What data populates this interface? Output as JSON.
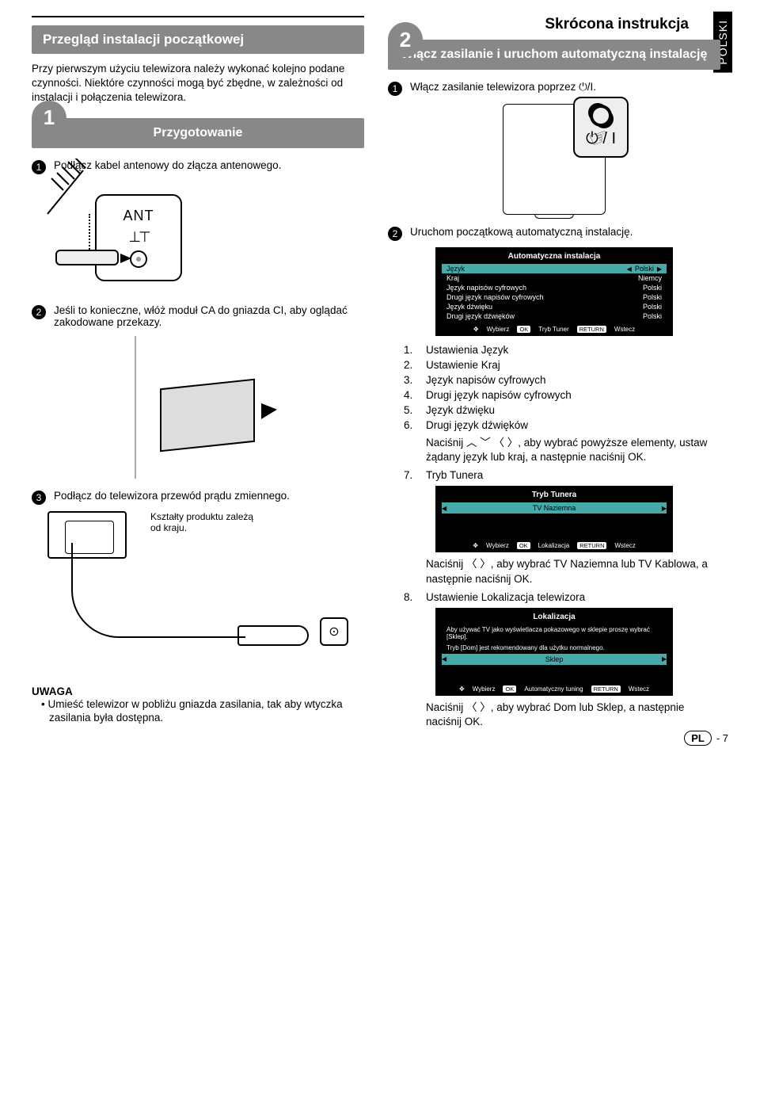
{
  "doc": {
    "title_right": "Skrócona instrukcja",
    "lang_tab": "POLSKI",
    "page_code": "PL",
    "page_num": "- 7"
  },
  "left": {
    "header": "Przegląd instalacji początkowej",
    "intro": "Przy pierwszym użyciu telewizora należy wykonać kolejno podane czynności. Niektóre czynności mogą być zbędne, w zależności od instalacji i połączenia telewizora.",
    "step1_num": "1",
    "step1_title": "Przygotowanie",
    "s1_1": "Podłącz kabel antenowy do złącza antenowego.",
    "ant_label": "ANT",
    "s1_2": "Jeśli to konieczne, włóż moduł CA do gniazda CI, aby oglądać zakodowane przekazy.",
    "s1_3": "Podłącz do telewizora przewód prądu zmiennego.",
    "shape_note": "Kształty produktu zależą od kraju.",
    "note_head": "UWAGA",
    "note_body": "Umieść telewizor w pobliżu gniazda zasilania, tak aby wtyczka zasilania była dostępna."
  },
  "right": {
    "step2_num": "2",
    "step2_title": "Włącz zasilanie i uruchom automatyczną instalację",
    "s2_1_pre": "Włącz zasilanie telewizora poprzez ",
    "s2_1_icon": "⏻/I.",
    "s2_2": "Uruchom początkową automatyczną instalację.",
    "osd1": {
      "title": "Automatyczna instalacja",
      "rows": [
        {
          "l": "Język",
          "r": "Polski",
          "hl": true
        },
        {
          "l": "Kraj",
          "r": "Niemcy"
        },
        {
          "l": "Język napisów cyfrowych",
          "r": "Polski"
        },
        {
          "l": "Drugi język napisów cyfrowych",
          "r": "Polski"
        },
        {
          "l": "Język dźwięku",
          "r": "Polski"
        },
        {
          "l": "Drugi język dźwięków",
          "r": "Polski"
        }
      ],
      "help_select": "Wybierz",
      "help_ok": "OK",
      "help_ok_txt": "Tryb Tuner",
      "help_ret": "RETURN",
      "help_ret_txt": "Wstecz"
    },
    "list": [
      "Ustawienia Język",
      "Ustawienie Kraj",
      "Język napisów cyfrowych",
      "Drugi język napisów cyfrowych",
      "Język dźwięku",
      "Drugi język dźwięków"
    ],
    "list_after": "Naciśnij ",
    "list_after2": ", aby wybrać powyższe elementy, ustaw żądany język lub kraj, a następnie naciśnij OK.",
    "list7": "Tryb Tunera",
    "osd2": {
      "title": "Tryb Tunera",
      "value": "TV Naziemna",
      "help_select": "Wybierz",
      "help_ok": "OK",
      "help_ok_txt": "Lokalizacja",
      "help_ret": "RETURN",
      "help_ret_txt": "Wstecz"
    },
    "after_osd2_pre": "Naciśnij ",
    "after_osd2": ", aby wybrać TV Naziemna lub TV Kablowa, a następnie naciśnij OK.",
    "list8": "Ustawienie Lokalizacja telewizora",
    "osd3": {
      "title": "Lokalizacja",
      "note1": "Aby używać TV jako wyświetlacza  pokazowego w sklepie proszę wybrać [Sklep].",
      "note2": "Tryb [Dom] jest rekomendowany dla użytku normalnego.",
      "value": "Sklep",
      "help_select": "Wybierz",
      "help_ok": "OK",
      "help_ok_txt": "Automatyczny tuning",
      "help_ret": "RETURN",
      "help_ret_txt": "Wstecz"
    },
    "after_osd3_pre": "Naciśnij ",
    "after_osd3": ", aby wybrać Dom lub Sklep, a następnie naciśnij OK."
  },
  "glyphs": {
    "nav4": "︿ ﹀ 〈 〉",
    "nav2": "〈 〉",
    "cross": "✥"
  }
}
